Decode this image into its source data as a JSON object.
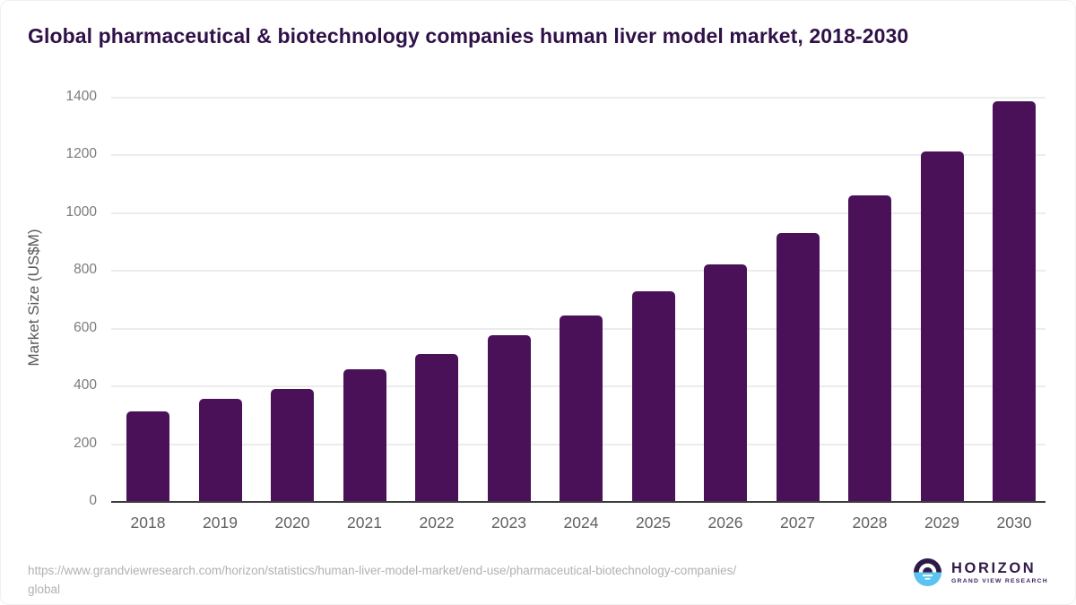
{
  "title": "Global pharmaceutical & biotechnology companies human liver model market, 2018-2030",
  "chart_data": {
    "type": "bar",
    "categories": [
      "2018",
      "2019",
      "2020",
      "2021",
      "2022",
      "2023",
      "2024",
      "2025",
      "2026",
      "2027",
      "2028",
      "2029",
      "2030"
    ],
    "values": [
      315,
      356,
      390,
      459,
      511,
      576,
      645,
      729,
      824,
      932,
      1063,
      1213,
      1388
    ],
    "title": "Global pharmaceutical & biotechnology companies human liver model market, 2018-2030",
    "xlabel": "",
    "ylabel": "Market Size (US$M)",
    "ylim": [
      0,
      1400
    ],
    "yticks": [
      0,
      200,
      400,
      600,
      800,
      1000,
      1200,
      1400
    ],
    "grid": "horizontal",
    "legend": "none"
  },
  "colors": {
    "bar": "#4a1159",
    "title_text": "#2f1148",
    "grid_line": "#ececec",
    "axis_line": "#3d3d3d",
    "ytick_text": "#7a7b7d",
    "xtick_text": "#616163",
    "url_text": "#b1b1b3",
    "logo_purple": "#2e1a47",
    "logo_blue": "#5bc3f0"
  },
  "footer": {
    "url_line1": "https://www.grandviewresearch.com/horizon/statistics/human-liver-model-market/end-use/pharmaceutical-biotechnology-companies/",
    "url_line2": "global",
    "logo": {
      "name": "HORIZON",
      "subtitle": "GRAND VIEW RESEARCH",
      "mark": "sun-over-horizon-icon"
    }
  }
}
